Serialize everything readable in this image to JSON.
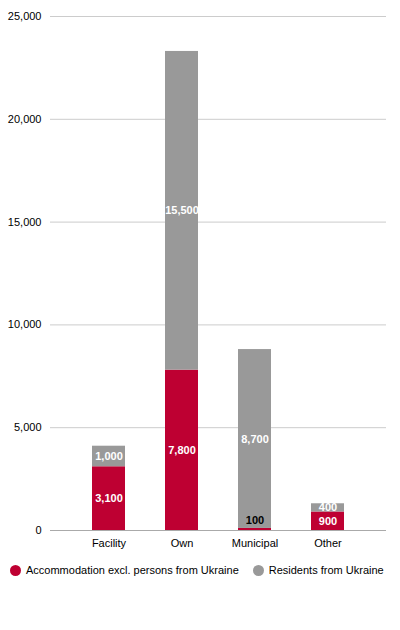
{
  "chart_data": {
    "type": "bar",
    "stacked": true,
    "categories": [
      "Facility",
      "Own",
      "Municipal",
      "Other"
    ],
    "series": [
      {
        "name": "Accommodation excl. persons from Ukraine",
        "color": "#be0032",
        "values": [
          3100,
          7800,
          100,
          900
        ],
        "value_labels": [
          "3,100",
          "7,800",
          "100",
          "900"
        ]
      },
      {
        "name": "Residents from Ukraine",
        "color": "#999999",
        "values": [
          1000,
          15500,
          8700,
          400
        ],
        "value_labels": [
          "1,000",
          "15,500",
          "8,700",
          "400"
        ]
      }
    ],
    "ylim": [
      0,
      25000
    ],
    "yticks": [
      0,
      {
        "value": 5000,
        "label": "5,000"
      },
      {
        "value": 10000,
        "label": "10,000"
      },
      {
        "value": 15000,
        "label": "15,000"
      },
      {
        "value": 20000,
        "label": "20,000"
      },
      {
        "value": 25000,
        "label": "25,000"
      }
    ],
    "grid": true,
    "data_labels": true,
    "legend": "bottom left"
  }
}
